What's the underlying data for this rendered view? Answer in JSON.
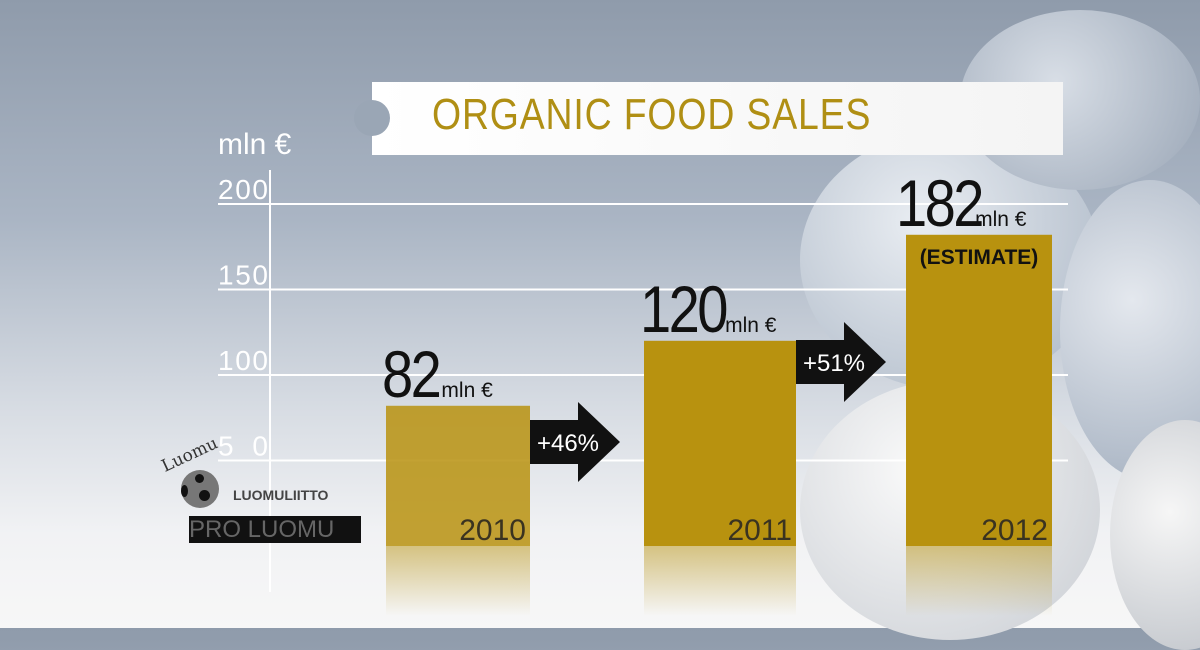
{
  "chart_data": {
    "type": "bar",
    "title": "ORGANIC FOOD SALES",
    "ylabel": "mln €",
    "ylim": [
      0,
      200
    ],
    "yticks": [
      50,
      100,
      150,
      200
    ],
    "categories": [
      "2010",
      "2011",
      "2012"
    ],
    "values": [
      82,
      120,
      182
    ],
    "value_labels": [
      "82",
      "120",
      "182"
    ],
    "value_unit": "mln €",
    "annotations": [
      "+46%",
      "+51%",
      "(ESTIMATE)"
    ],
    "bar_color": "#b8920f",
    "grid": true
  },
  "logo": {
    "luomu": "Luomu",
    "luomuliitto": "LUOMULIITTO",
    "proluomu": "PRO LUOMU"
  }
}
